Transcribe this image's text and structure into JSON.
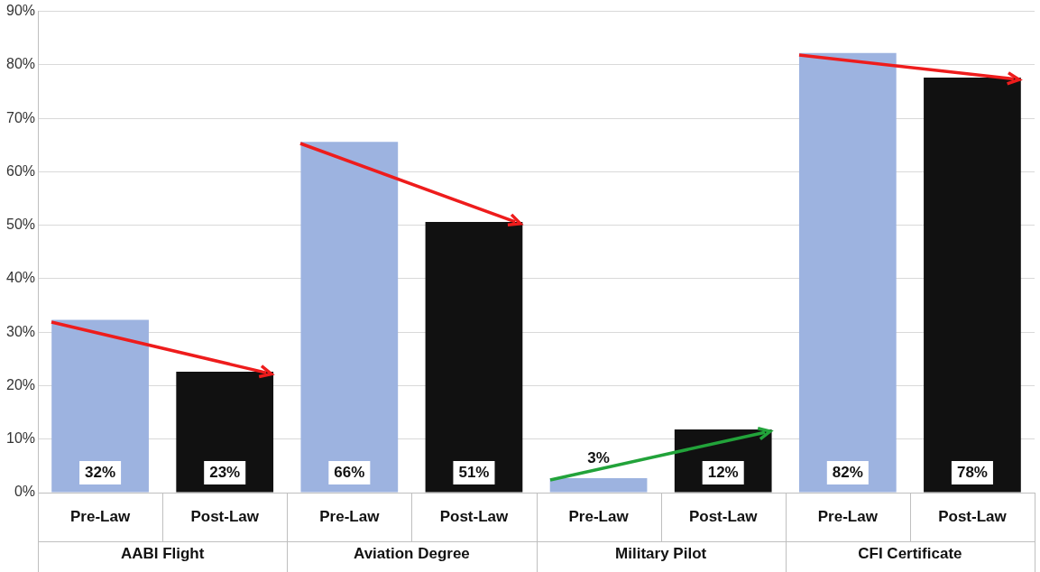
{
  "chart_data": {
    "type": "bar",
    "categories": [
      "AABI Flight",
      "Aviation Degree",
      "Military Pilot",
      "CFI Certificate"
    ],
    "series": [
      {
        "name": "Pre-Law",
        "color": "#9db3e0",
        "values": [
          32.3,
          65.6,
          2.7,
          82.2
        ],
        "value_labels": [
          "32%",
          "66%",
          "3%",
          "82%"
        ]
      },
      {
        "name": "Post-Law",
        "color": "#111111",
        "values": [
          22.6,
          50.6,
          11.8,
          77.6
        ],
        "value_labels": [
          "23%",
          "51%",
          "12%",
          "78%"
        ]
      }
    ],
    "ylim": [
      0,
      90
    ],
    "yticks": [
      {
        "value": 0,
        "label": "0%"
      },
      {
        "value": 10,
        "label": "10%"
      },
      {
        "value": 20,
        "label": "20%"
      },
      {
        "value": 30,
        "label": "30%"
      },
      {
        "value": 40,
        "label": "40%"
      },
      {
        "value": 50,
        "label": "50%"
      },
      {
        "value": 60,
        "label": "60%"
      },
      {
        "value": 70,
        "label": "70%"
      },
      {
        "value": 80,
        "label": "80%"
      },
      {
        "value": 90,
        "label": "90%"
      }
    ],
    "grid": "y",
    "legend": false
  }
}
